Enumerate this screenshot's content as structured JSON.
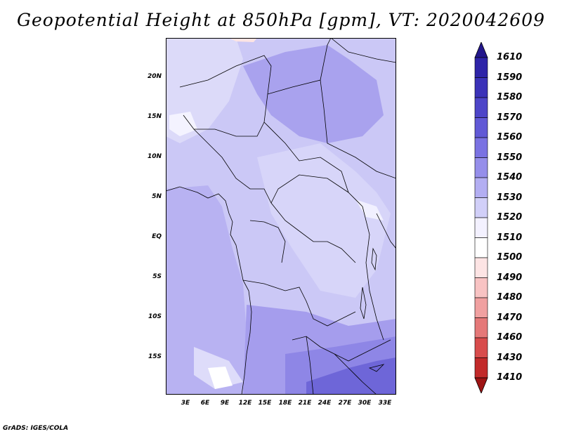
{
  "title": "Geopotential Height at 850hPa [gpm], VT: 2020042609",
  "map": {
    "lat_labels": [
      "20N",
      "15N",
      "10N",
      "5N",
      "EQ",
      "5S",
      "10S",
      "15S"
    ],
    "lon_labels": [
      "3E",
      "6E",
      "9E",
      "12E",
      "15E",
      "18E",
      "21E",
      "24E",
      "27E",
      "30E",
      "33E"
    ]
  },
  "colorbar": {
    "labels": [
      "1610",
      "1590",
      "1580",
      "1570",
      "1560",
      "1550",
      "1540",
      "1530",
      "1520",
      "1510",
      "1500",
      "1490",
      "1480",
      "1470",
      "1460",
      "1430",
      "1410"
    ],
    "colors": [
      "#23178c",
      "#2e24a8",
      "#3b32b8",
      "#4d45c8",
      "#6159d6",
      "#7a72e2",
      "#958eea",
      "#b3aef2",
      "#d1cff8",
      "#f3f1ff",
      "#ffffff",
      "#fde4e4",
      "#f8c3c3",
      "#f0a0a0",
      "#e57878",
      "#d84c4c",
      "#c22a2a",
      "#9e1414"
    ]
  },
  "footer": "GrADS: IGES/COLA"
}
